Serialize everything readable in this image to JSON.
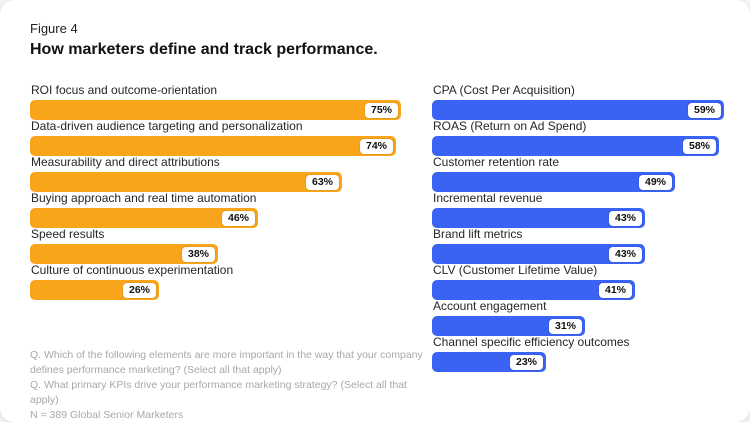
{
  "figure_label": "Figure 4",
  "title": "How marketers define and track performance.",
  "colors": {
    "left_bar": "#F9A51C",
    "right_bar": "#3B63F3",
    "value_pill_bg": "#FFFFFF",
    "value_text": "#111111",
    "label_text": "#262626",
    "footnote_text": "#A8A8A6",
    "card_bg": "#FFFFFF",
    "page_bg": "#F3F3F2"
  },
  "chart_data": [
    {
      "type": "bar",
      "orientation": "horizontal",
      "unit": "%",
      "bar_color": "#F9A51C",
      "value_labels_position": "inside-end",
      "axes_shown": false,
      "grid": false,
      "legend": false,
      "categories": [
        "ROI focus and outcome-orientation",
        "Data-driven audience targeting and personalization",
        "Measurability and direct attributions",
        "Buying approach and real time automation",
        "Speed results",
        "Culture of continuous experimentation"
      ],
      "values": [
        75,
        74,
        63,
        46,
        38,
        26
      ],
      "value_labels": [
        "75%",
        "74%",
        "63%",
        "46%",
        "38%",
        "26%"
      ]
    },
    {
      "type": "bar",
      "orientation": "horizontal",
      "unit": "%",
      "bar_color": "#3B63F3",
      "value_labels_position": "inside-end",
      "axes_shown": false,
      "grid": false,
      "legend": false,
      "categories": [
        "CPA (Cost Per Acquisition)",
        "ROAS (Return on Ad Spend)",
        "Customer retention rate",
        "Incremental revenue",
        "Brand lift metrics",
        "CLV (Customer Lifetime Value)",
        "Account engagement",
        "Channel specific efficiency outcomes"
      ],
      "values": [
        59,
        58,
        49,
        43,
        43,
        41,
        31,
        23
      ],
      "value_labels": [
        "59%",
        "58%",
        "49%",
        "43%",
        "43%",
        "41%",
        "31%",
        "23%"
      ]
    }
  ],
  "footnotes": [
    "Q. Which of the following elements are more important in the way that your company defines performance marketing? (Select all that apply)",
    "Q. What primary KPIs drive your performance marketing strategy? (Select all that apply)",
    "N = 389 Global Senior Marketers"
  ]
}
